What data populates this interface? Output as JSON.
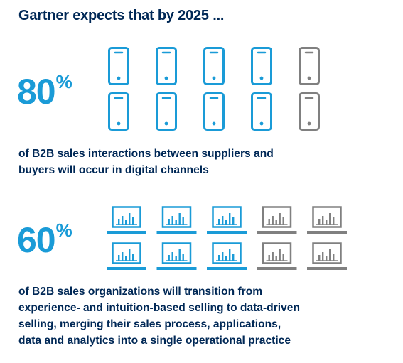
{
  "headline": "Gartner expects that by 2025 ...",
  "colors": {
    "highlight": "#1a9bd7",
    "neutral": "#808080",
    "text": "#002856"
  },
  "chart_data": [
    {
      "type": "pictogram",
      "icon": "smartphone-icon",
      "value_percent": 80,
      "total_icons": 10,
      "highlighted_icons": 8,
      "big_number": "80",
      "percent_sign": "%",
      "caption_lines": [
        "of B2B sales interactions between suppliers and",
        "buyers will occur in digital channels"
      ]
    },
    {
      "type": "pictogram",
      "icon": "laptop-chart-icon",
      "value_percent": 60,
      "total_icons": 10,
      "highlighted_icons": 6,
      "big_number": "60",
      "percent_sign": "%",
      "caption_lines": [
        "of B2B sales organizations will transition from",
        "experience- and intuition-based selling to data-driven",
        "selling, merging their sales process, applications,",
        "data and analytics into a single operational practice"
      ]
    }
  ]
}
